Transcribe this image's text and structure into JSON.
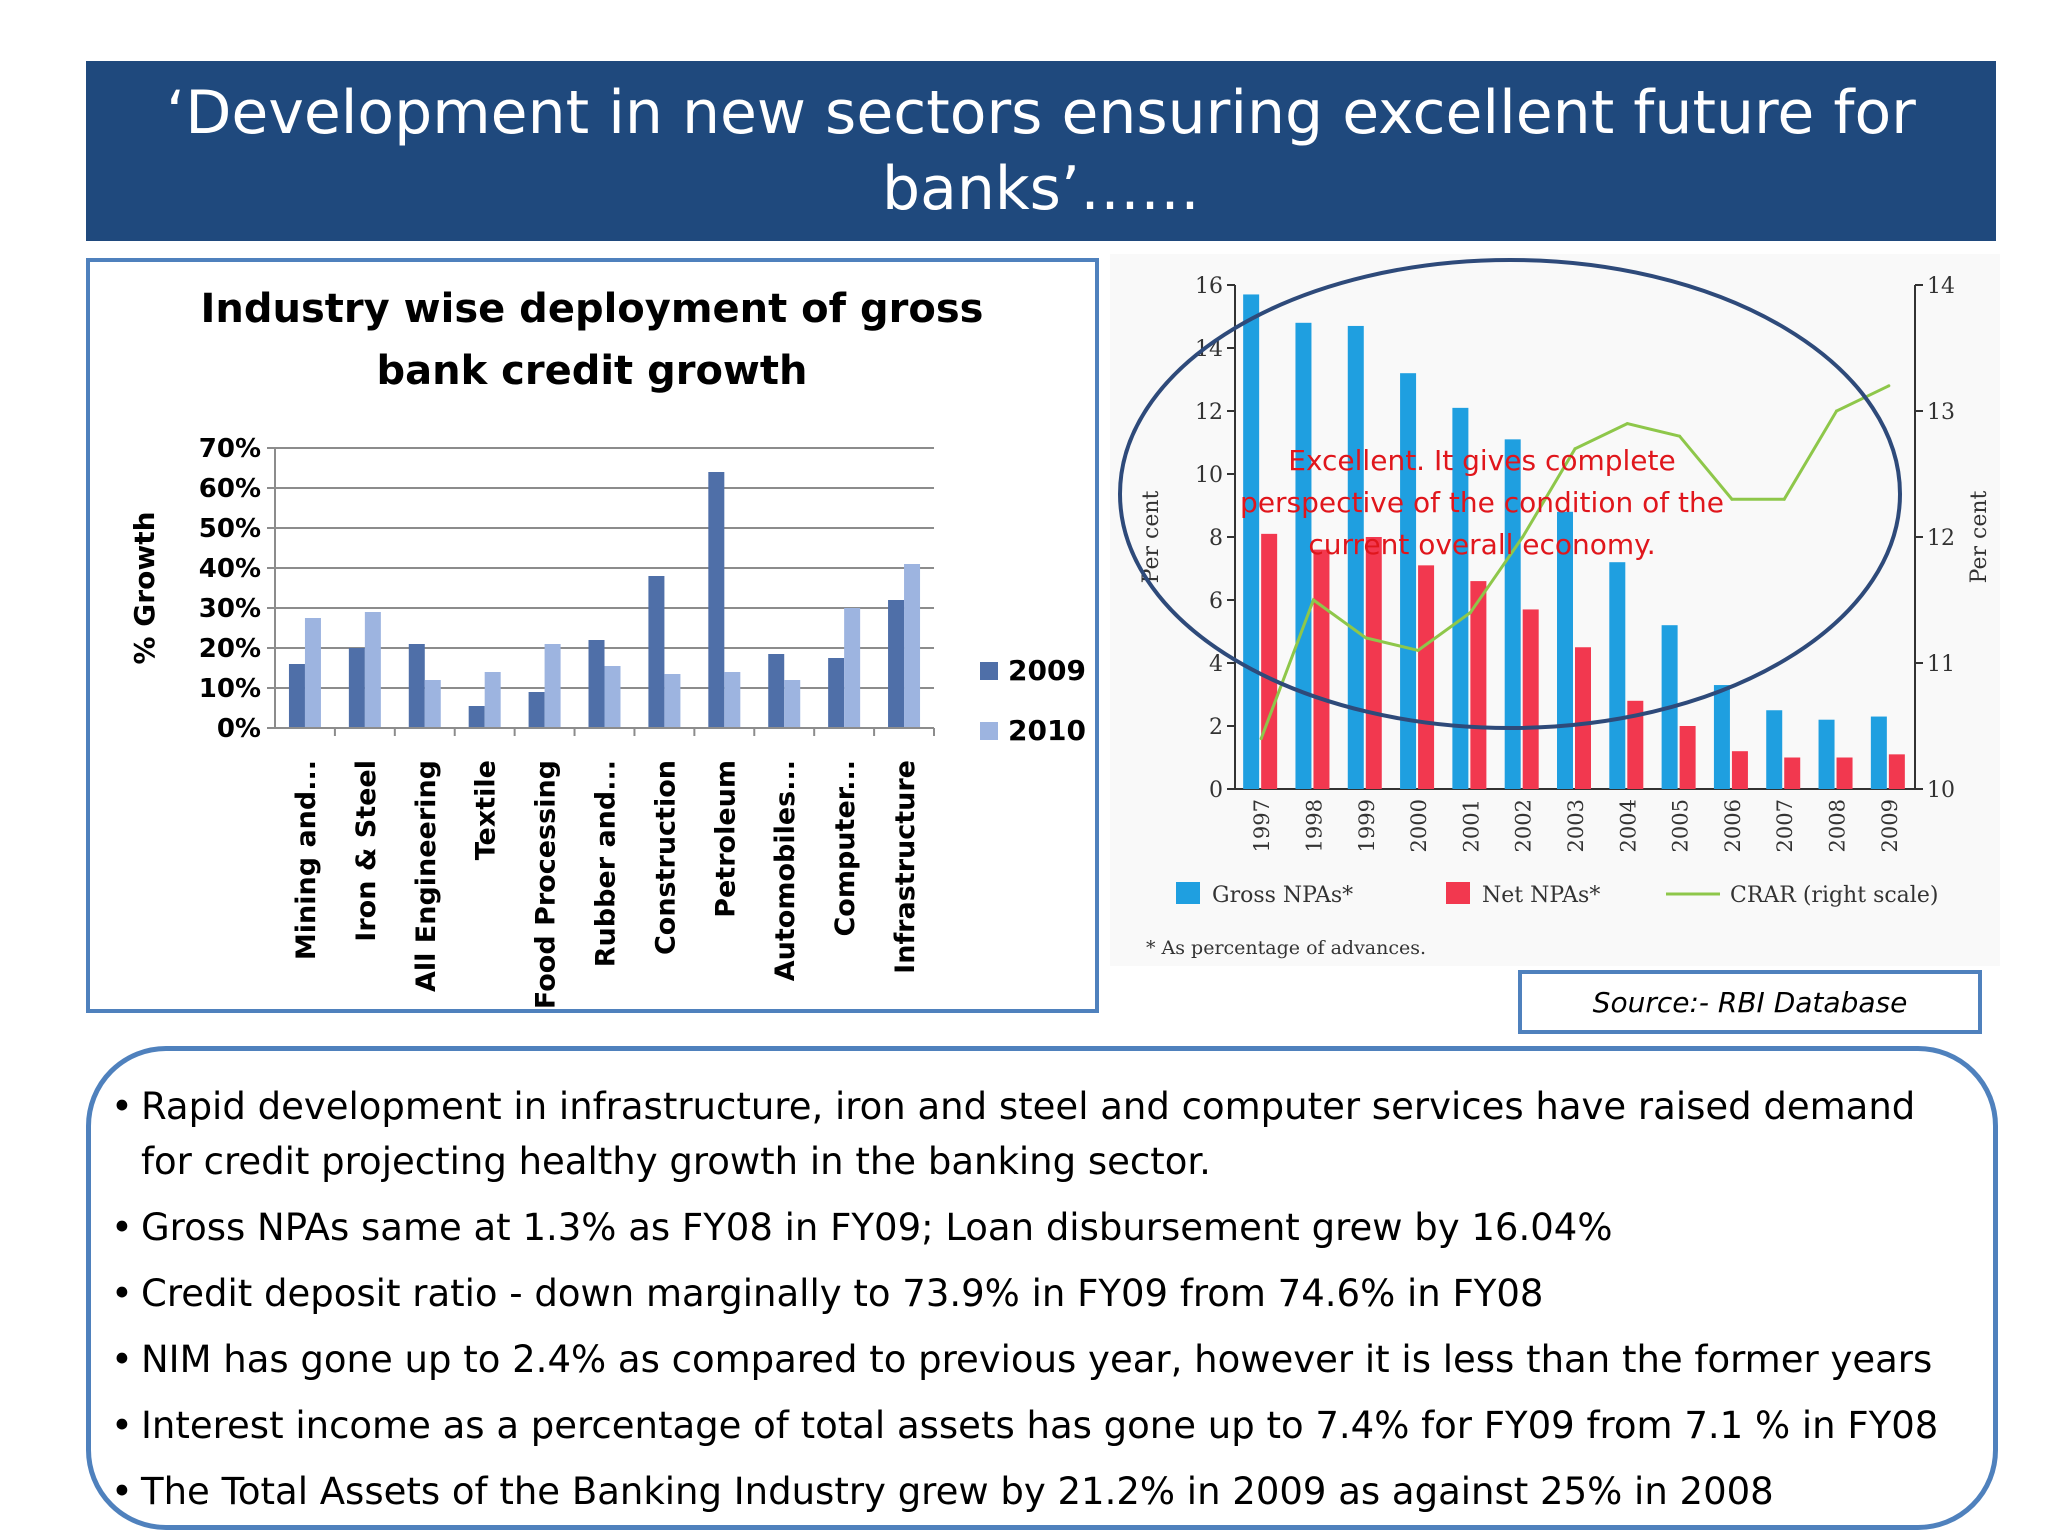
{
  "slide": {
    "title": "‘Development in new sectors ensuring excellent future for banks’……",
    "source": "Source:- RBI Database",
    "annotation": "Excellent. It gives complete perspective of the condition of the current overall economy.",
    "annotation_lines": [
      "Excellent. It gives complete",
      "perspective of the condition of the",
      "current overall economy."
    ],
    "bullets": [
      "Rapid development in infrastructure, iron and steel and computer services have raised demand for credit projecting healthy growth in the banking sector.",
      "Gross NPAs same at 1.3% as FY08 in FY09; Loan disbursement grew by 16.04%",
      "Credit deposit ratio - down marginally to 73.9% in FY09 from 74.6% in FY08",
      "NIM has gone up to 2.4% as compared to previous year, however it is less than the former years",
      "Interest income as a percentage of total assets has gone up to 7.4% for FY09 from 7.1 % in FY08",
      "The Total Assets of the Banking Industry grew by 21.2% in 2009 as against 25% in 2008"
    ]
  },
  "chart_data": [
    {
      "type": "bar",
      "title": "Industry wise deployment of gross bank credit growth",
      "title_lines": [
        "Industry wise deployment of gross",
        "bank credit growth"
      ],
      "xlabel": "",
      "ylabel": "% Growth",
      "ylim": [
        0,
        70
      ],
      "yticks": [
        "0%",
        "10%",
        "20%",
        "30%",
        "40%",
        "50%",
        "60%",
        "70%"
      ],
      "grid": true,
      "legend": "right",
      "categories": [
        "Mining and...",
        "Iron & Steel",
        "All Engineering",
        "Textile",
        "Food Processing",
        "Rubber and...",
        "Construction",
        "Petroleum",
        "Automobiles...",
        "Computer...",
        "Infrastructure"
      ],
      "series": [
        {
          "name": "2009",
          "color": "#4f6fa8",
          "values": [
            16,
            20,
            21,
            5.5,
            9,
            22,
            38,
            64,
            18.5,
            17.5,
            32
          ]
        },
        {
          "name": "2010",
          "color": "#9db4e0",
          "values": [
            27.5,
            29,
            12,
            14,
            21,
            15.5,
            13.5,
            14,
            12,
            30,
            41
          ]
        }
      ]
    },
    {
      "type": "bar",
      "title": "",
      "xlabel": "",
      "ylabel": "Per cent",
      "y2label": "Per cent",
      "ylim": [
        0,
        16
      ],
      "y2lim": [
        10,
        14
      ],
      "yticks": [
        "0",
        "2",
        "4",
        "6",
        "8",
        "10",
        "12",
        "14",
        "16"
      ],
      "y2ticks": [
        "10",
        "11",
        "12",
        "13",
        "14"
      ],
      "legend": "bottom",
      "categories": [
        "1997",
        "1998",
        "1999",
        "2000",
        "2001",
        "2002",
        "2003",
        "2004",
        "2005",
        "2006",
        "2007",
        "2008",
        "2009"
      ],
      "series": [
        {
          "name": "Gross NPAs*",
          "color": "#1f9fe0",
          "values": [
            15.7,
            14.8,
            14.7,
            13.2,
            12.1,
            11.1,
            8.8,
            7.2,
            5.2,
            3.3,
            2.5,
            2.2,
            2.3
          ]
        },
        {
          "name": "Net NPAs*",
          "color": "#f2384f",
          "values": [
            8.1,
            7.6,
            8.0,
            7.1,
            6.6,
            5.7,
            4.5,
            2.8,
            2.0,
            1.2,
            1.0,
            1.0,
            1.1
          ]
        },
        {
          "name": "CRAR (right scale)",
          "type": "line",
          "axis": "right",
          "color": "#8ec74a",
          "values": [
            10.4,
            11.5,
            11.2,
            11.1,
            11.4,
            12.0,
            12.7,
            12.9,
            12.8,
            12.3,
            12.3,
            13.0,
            13.2
          ]
        }
      ],
      "footnote": "* As percentage of advances."
    }
  ]
}
